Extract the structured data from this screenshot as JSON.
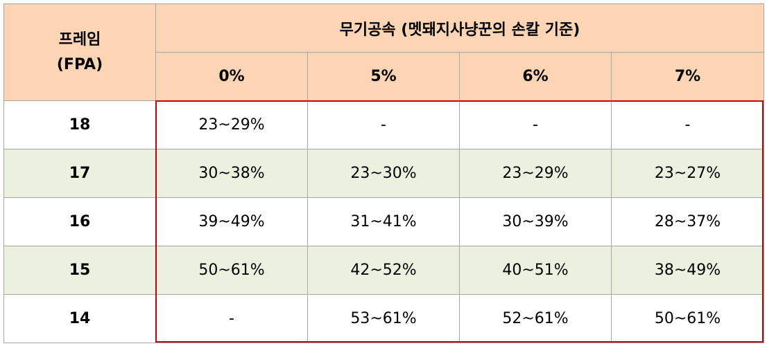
{
  "header": {
    "frame": [
      "프레임",
      "(FPA)"
    ],
    "title": "무기공속 (멧돼지사냥꾼의 손칼 기준)",
    "columns": [
      "0%",
      "5%",
      "6%",
      "7%"
    ]
  },
  "rows": [
    {
      "fpa": 18,
      "cells": [
        "23~29%",
        "-",
        "-",
        "-"
      ]
    },
    {
      "fpa": 17,
      "cells": [
        "30~38%",
        "23~30%",
        "23~29%",
        "23~27%"
      ]
    },
    {
      "fpa": 16,
      "cells": [
        "39~49%",
        "31~41%",
        "30~39%",
        "28~37%"
      ]
    },
    {
      "fpa": 15,
      "cells": [
        "50~61%",
        "42~52%",
        "40~51%",
        "38~49%"
      ]
    },
    {
      "fpa": 14,
      "cells": [
        "-",
        "53~61%",
        "52~61%",
        "50~61%"
      ]
    }
  ]
}
